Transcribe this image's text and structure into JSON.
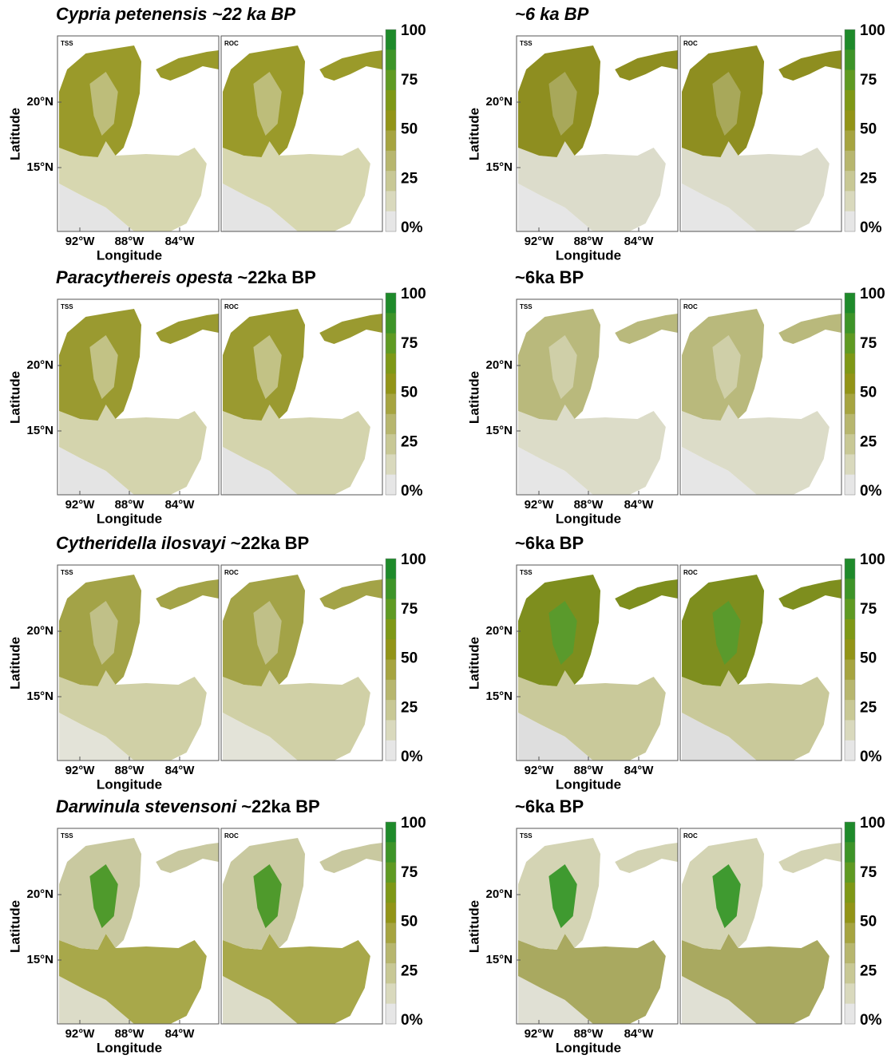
{
  "panels": [
    {
      "title_species": "Cypria petenensis",
      "title_time": "~22  ka BP",
      "sub_labels": [
        "TSS",
        "ROC"
      ],
      "y_label": "Latitude",
      "x_label": "Longitude",
      "lat_ticks": [
        "20°N",
        "15°N"
      ],
      "lon_ticks": [
        "92°W",
        "88°W",
        "84°W"
      ],
      "colorbar": [
        "100",
        "75",
        "50",
        "25",
        "0%"
      ]
    },
    {
      "title_species": "",
      "title_time": "~6 ka BP",
      "sub_labels": [
        "TSS",
        "ROC"
      ],
      "y_label": "Latitude",
      "x_label": "Longitude",
      "lat_ticks": [
        "20°N",
        "15°N"
      ],
      "lon_ticks": [
        "92°W",
        "88°W",
        "84°W"
      ],
      "colorbar": [
        "100",
        "75",
        "50",
        "25",
        "0%"
      ]
    },
    {
      "title_species": "Paracythereis opesta",
      "title_time": "~22ka BP",
      "sub_labels": [
        "TSS",
        "ROC"
      ],
      "y_label": "Latitude",
      "x_label": "Longitude",
      "lat_ticks": [
        "20°N",
        "15°N"
      ],
      "lon_ticks": [
        "92°W",
        "88°W",
        "84°W"
      ],
      "colorbar": [
        "100",
        "75",
        "50",
        "25",
        "0%"
      ]
    },
    {
      "title_species": "",
      "title_time": "~6ka BP",
      "sub_labels": [
        "TSS",
        "ROC"
      ],
      "y_label": "Latitude",
      "x_label": "Longitude",
      "lat_ticks": [
        "20°N",
        "15°N"
      ],
      "lon_ticks": [
        "92°W",
        "88°W",
        "84°W"
      ],
      "colorbar": [
        "100",
        "75",
        "50",
        "25",
        "0%"
      ]
    },
    {
      "title_species": "Cytheridella ilosvayi",
      "title_time": "~22ka BP",
      "sub_labels": [
        "TSS",
        "ROC"
      ],
      "y_label": "Latitude",
      "x_label": "Longitude",
      "lat_ticks": [
        "20°N",
        "15°N"
      ],
      "lon_ticks": [
        "92°W",
        "88°W",
        "84°W"
      ],
      "colorbar": [
        "100",
        "75",
        "50",
        "25",
        "0%"
      ]
    },
    {
      "title_species": "",
      "title_time": "~6ka BP",
      "sub_labels": [
        "TSS",
        "ROC"
      ],
      "y_label": "Latitude",
      "x_label": "Longitude",
      "lat_ticks": [
        "20°N",
        "15°N"
      ],
      "lon_ticks": [
        "92°W",
        "88°W",
        "84°W"
      ],
      "colorbar": [
        "100",
        "75",
        "50",
        "25",
        "0%"
      ]
    },
    {
      "title_species": "Darwinula stevensoni",
      "title_time": "~22ka BP",
      "sub_labels": [
        "TSS",
        "ROC"
      ],
      "y_label": "Latitude",
      "x_label": "Longitude",
      "lat_ticks": [
        "20°N",
        "15°N"
      ],
      "lon_ticks": [
        "92°W",
        "88°W",
        "84°W"
      ],
      "colorbar": [
        "100",
        "75",
        "50",
        "25",
        "0%"
      ]
    },
    {
      "title_species": "",
      "title_time": "~6ka BP",
      "sub_labels": [
        "TSS",
        "ROC"
      ],
      "y_label": "Latitude",
      "x_label": "Longitude",
      "lat_ticks": [
        "20°N",
        "15°N"
      ],
      "lon_ticks": [
        "92°W",
        "88°W",
        "84°W"
      ],
      "colorbar": [
        "100",
        "75",
        "50",
        "25",
        "0%"
      ]
    }
  ]
}
